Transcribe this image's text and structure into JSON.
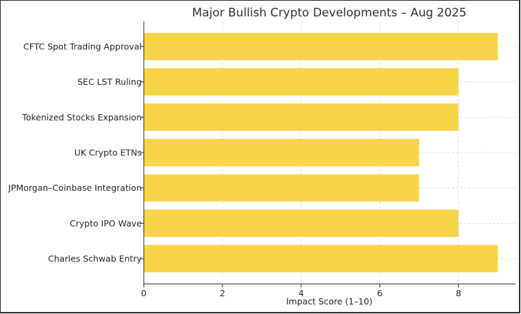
{
  "chart_data": {
    "type": "bar",
    "orientation": "horizontal",
    "title": "Major Bullish Crypto Developments – Aug 2025",
    "xlabel": "Impact Score (1–10)",
    "ylabel": "",
    "categories": [
      "CFTC Spot Trading Approval",
      "SEC LST Ruling",
      "Tokenized Stocks Expansion",
      "UK Crypto ETNs",
      "JPMorgan–Coinbase Integration",
      "Crypto IPO Wave",
      "Charles Schwab Entry"
    ],
    "values": [
      9,
      8,
      8,
      7,
      7,
      8,
      9
    ],
    "xlim": [
      0,
      9.45
    ],
    "xticks": [
      0,
      2,
      4,
      6,
      8
    ],
    "grid": true,
    "bar_color": "#f7d54b"
  }
}
